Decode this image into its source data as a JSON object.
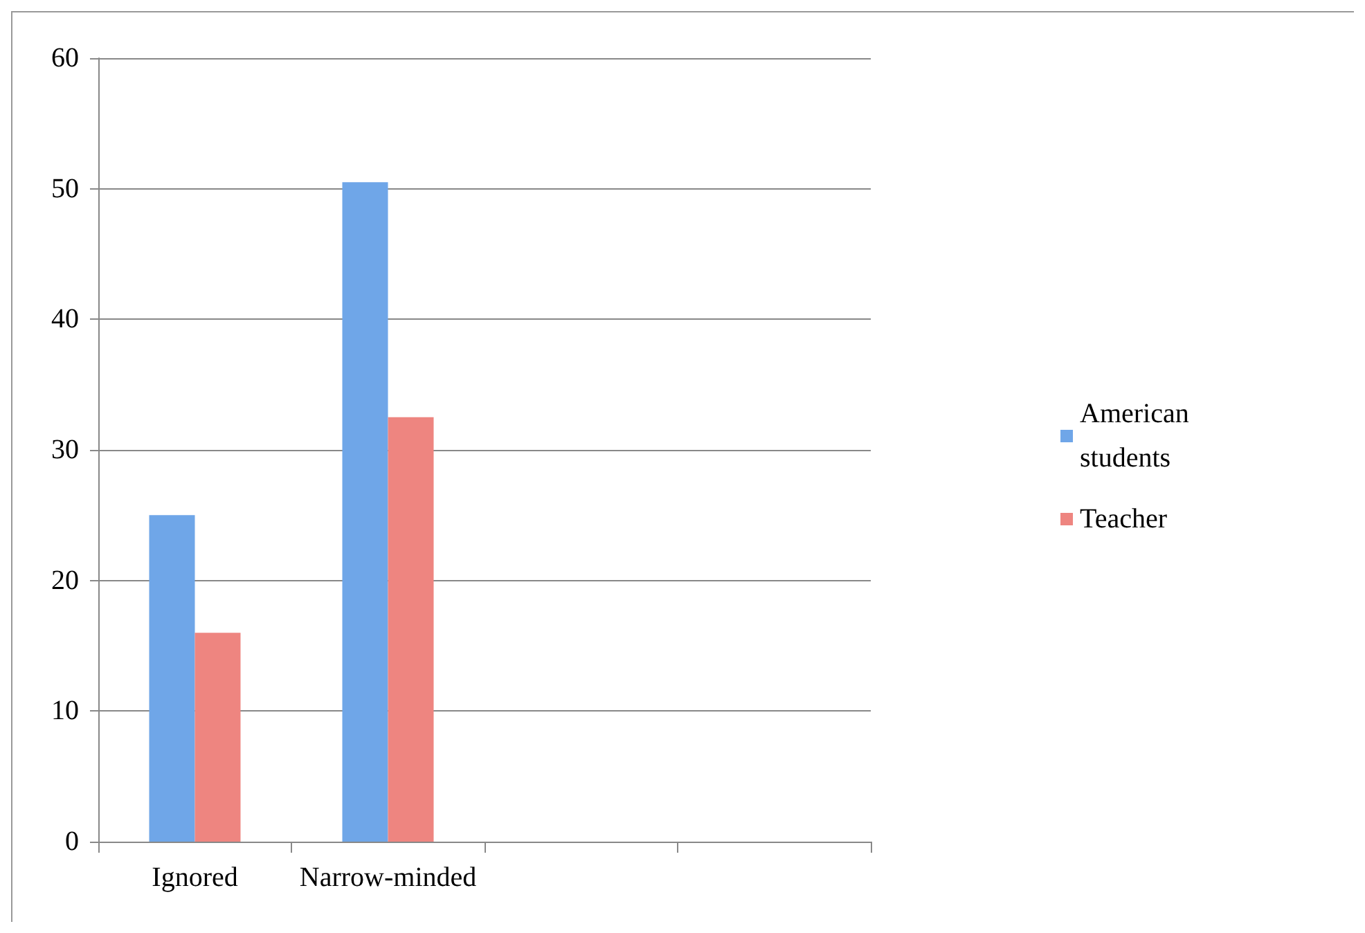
{
  "chart_data": {
    "type": "bar",
    "categories": [
      "Ignored",
      "Narrow-minded",
      null,
      null
    ],
    "series": [
      {
        "name": "American students",
        "color": "#6fa6e8",
        "values": [
          25,
          50.5,
          null,
          null
        ]
      },
      {
        "name": "Teacher",
        "color": "#ee8580",
        "values": [
          16,
          32.5,
          null,
          null
        ]
      }
    ],
    "ylim": [
      0,
      60
    ],
    "yticks": [
      0,
      10,
      20,
      30,
      40,
      50,
      60
    ],
    "grid": "y",
    "legend": "right"
  }
}
